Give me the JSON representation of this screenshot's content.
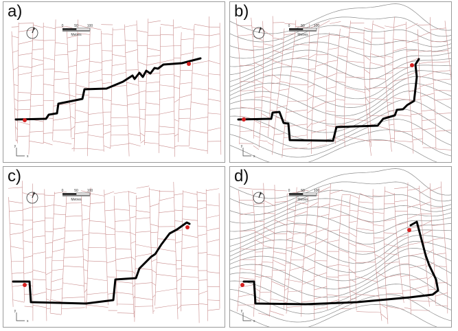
{
  "panels": [
    {
      "label": "a)",
      "terrain": false,
      "route": "direct"
    },
    {
      "label": "b)",
      "terrain": true,
      "route": "direct"
    },
    {
      "label": "c)",
      "terrain": false,
      "route": "detour"
    },
    {
      "label": "d)",
      "terrain": true,
      "route": "detour"
    }
  ],
  "scale": {
    "ticks": [
      "0",
      "50",
      "100"
    ],
    "unit": "Metres"
  },
  "axis": {
    "x": "x",
    "y": "y"
  },
  "colors": {
    "street": "#c98b8b",
    "contour": "#8a8a8a",
    "route": "#000000",
    "marker": "#d62020",
    "frame": "#9a9a9a"
  },
  "icons": {
    "compass": "north-arrow-icon",
    "marker": "location-dot-icon"
  }
}
